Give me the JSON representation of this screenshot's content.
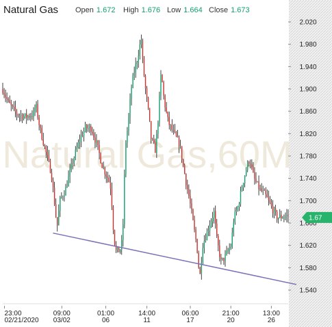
{
  "header": {
    "title": "Natural Gas",
    "open_label": "Open",
    "open_value": "1.672",
    "high_label": "High",
    "high_value": "1.676",
    "low_label": "Low",
    "low_value": "1.664",
    "close_label": "Close",
    "close_value": "1.673"
  },
  "watermark": "Natural Gas,60M",
  "last_price_label": "1.67",
  "colors": {
    "up": "#11a06a",
    "down": "#c9302c",
    "wick": "#111111",
    "trendline": "#7b72b8",
    "price_tag": "#27b36b",
    "watermark": "#efe9dc"
  },
  "chart_data": {
    "type": "candlestick",
    "title": "Natural Gas",
    "interval": "60M",
    "y_range": [
      1.54,
      2.02
    ],
    "y_ticks": [
      2.02,
      1.98,
      1.94,
      1.9,
      1.86,
      1.82,
      1.78,
      1.74,
      1.7,
      1.66,
      1.62,
      1.58,
      1.54
    ],
    "y_tick_labels": [
      "2.020",
      "1.980",
      "1.940",
      "1.900",
      "1.860",
      "1.820",
      "1.780",
      "1.740",
      "1.700",
      "1.660",
      "1.620",
      "1.580",
      "1.540"
    ],
    "x_ticks": [
      {
        "time": "23:00",
        "date": "02/21/2020"
      },
      {
        "time": "09:00",
        "date": "03/02"
      },
      {
        "time": "01:00",
        "date": "06"
      },
      {
        "time": "14:00",
        "date": "11"
      },
      {
        "time": "06:00",
        "date": "17"
      },
      {
        "time": "21:00",
        "date": "20"
      },
      {
        "time": "13:00",
        "date": "26"
      }
    ],
    "close_path": [
      [
        0,
        1.9
      ],
      [
        0.02,
        1.875
      ],
      [
        0.05,
        1.855
      ],
      [
        0.08,
        1.85
      ],
      [
        0.11,
        1.855
      ],
      [
        0.115,
        1.875
      ],
      [
        0.13,
        1.83
      ],
      [
        0.15,
        1.79
      ],
      [
        0.17,
        1.75
      ],
      [
        0.185,
        1.68
      ],
      [
        0.19,
        1.65
      ],
      [
        0.2,
        1.7
      ],
      [
        0.22,
        1.72
      ],
      [
        0.245,
        1.77
      ],
      [
        0.27,
        1.81
      ],
      [
        0.29,
        1.83
      ],
      [
        0.31,
        1.83
      ],
      [
        0.33,
        1.8
      ],
      [
        0.35,
        1.76
      ],
      [
        0.37,
        1.74
      ],
      [
        0.38,
        1.72
      ],
      [
        0.385,
        1.665
      ],
      [
        0.395,
        1.61
      ],
      [
        0.41,
        1.61
      ],
      [
        0.42,
        1.63
      ],
      [
        0.425,
        1.72
      ],
      [
        0.43,
        1.8
      ],
      [
        0.44,
        1.84
      ],
      [
        0.45,
        1.9
      ],
      [
        0.46,
        1.93
      ],
      [
        0.47,
        1.95
      ],
      [
        0.485,
        1.99
      ],
      [
        0.49,
        1.95
      ],
      [
        0.5,
        1.9
      ],
      [
        0.51,
        1.86
      ],
      [
        0.52,
        1.81
      ],
      [
        0.535,
        1.79
      ],
      [
        0.545,
        1.85
      ],
      [
        0.555,
        1.93
      ],
      [
        0.565,
        1.88
      ],
      [
        0.58,
        1.84
      ],
      [
        0.6,
        1.82
      ],
      [
        0.62,
        1.8
      ],
      [
        0.64,
        1.74
      ],
      [
        0.655,
        1.7
      ],
      [
        0.67,
        1.65
      ],
      [
        0.68,
        1.62
      ],
      [
        0.69,
        1.56
      ],
      [
        0.7,
        1.62
      ],
      [
        0.72,
        1.65
      ],
      [
        0.74,
        1.68
      ],
      [
        0.75,
        1.63
      ],
      [
        0.765,
        1.59
      ],
      [
        0.78,
        1.6
      ],
      [
        0.8,
        1.62
      ],
      [
        0.81,
        1.67
      ],
      [
        0.825,
        1.69
      ],
      [
        0.84,
        1.73
      ],
      [
        0.855,
        1.76
      ],
      [
        0.865,
        1.775
      ],
      [
        0.88,
        1.74
      ],
      [
        0.9,
        1.72
      ],
      [
        0.92,
        1.71
      ],
      [
        0.94,
        1.69
      ],
      [
        0.96,
        1.67
      ],
      [
        1,
        1.673
      ]
    ],
    "trendline": {
      "start": 1.642,
      "end": 1.55,
      "label": ""
    },
    "last_price": 1.67
  }
}
